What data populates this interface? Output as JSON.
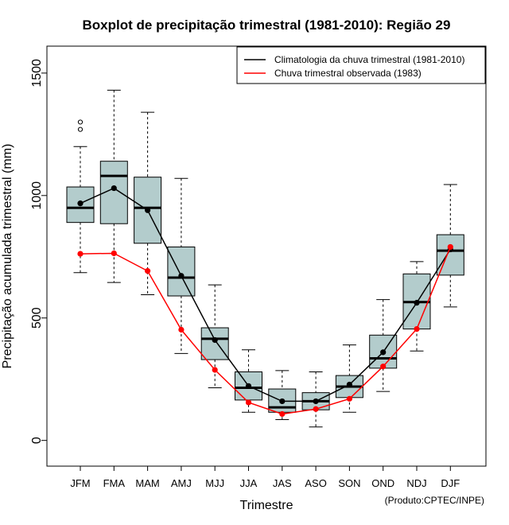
{
  "chart_data": {
    "type": "boxplot",
    "title": "Boxplot de precipitação trimestral (1981-2010): Região 29",
    "xlabel": "Trimestre",
    "ylabel": "Precipitação acumulada trimestral (mm)",
    "ylim": [
      -105,
      1610
    ],
    "yticks": [
      0,
      500,
      1000,
      1500
    ],
    "credit": "(Produto:CPTEC/INPE)",
    "legend_position": "top-right",
    "legend": [
      {
        "label": "Climatologia da chuva trimestral (1981-2010)",
        "color": "#000000"
      },
      {
        "label": "Chuva trimestral observada (1983)",
        "color": "#ff0000"
      }
    ],
    "box_color": "#b3cccc",
    "categories": [
      "JFM",
      "FMA",
      "MAM",
      "AMJ",
      "MJJ",
      "JJA",
      "JAS",
      "ASO",
      "SON",
      "OND",
      "NDJ",
      "DJF"
    ],
    "boxes": [
      {
        "min": 685,
        "q1": 890,
        "median": 950,
        "q3": 1035,
        "max": 1200,
        "outliers": [
          1270,
          1300
        ]
      },
      {
        "min": 645,
        "q1": 885,
        "median": 1080,
        "q3": 1140,
        "max": 1430,
        "outliers": []
      },
      {
        "min": 595,
        "q1": 805,
        "median": 950,
        "q3": 1075,
        "max": 1340,
        "outliers": []
      },
      {
        "min": 355,
        "q1": 590,
        "median": 665,
        "q3": 790,
        "max": 1070,
        "outliers": []
      },
      {
        "min": 215,
        "q1": 330,
        "median": 415,
        "q3": 460,
        "max": 635,
        "outliers": []
      },
      {
        "min": 115,
        "q1": 165,
        "median": 215,
        "q3": 280,
        "max": 370,
        "outliers": []
      },
      {
        "min": 85,
        "q1": 115,
        "median": 135,
        "q3": 210,
        "max": 285,
        "outliers": []
      },
      {
        "min": 55,
        "q1": 125,
        "median": 160,
        "q3": 195,
        "max": 280,
        "outliers": []
      },
      {
        "min": 115,
        "q1": 175,
        "median": 220,
        "q3": 265,
        "max": 390,
        "outliers": []
      },
      {
        "min": 200,
        "q1": 295,
        "median": 335,
        "q3": 430,
        "max": 575,
        "outliers": []
      },
      {
        "min": 365,
        "q1": 455,
        "median": 565,
        "q3": 680,
        "max": 730,
        "outliers": []
      },
      {
        "min": 545,
        "q1": 675,
        "median": 775,
        "q3": 840,
        "max": 1045,
        "outliers": []
      }
    ],
    "series": [
      {
        "name": "Climatologia da chuva trimestral (1981-2010)",
        "color": "#000000",
        "values": [
          968,
          1030,
          940,
          672,
          410,
          222,
          160,
          160,
          228,
          360,
          562,
          780
        ]
      },
      {
        "name": "Chuva trimestral observada (1983)",
        "color": "#ff0000",
        "values": [
          762,
          764,
          692,
          452,
          288,
          155,
          108,
          128,
          170,
          302,
          455,
          790
        ]
      }
    ]
  }
}
